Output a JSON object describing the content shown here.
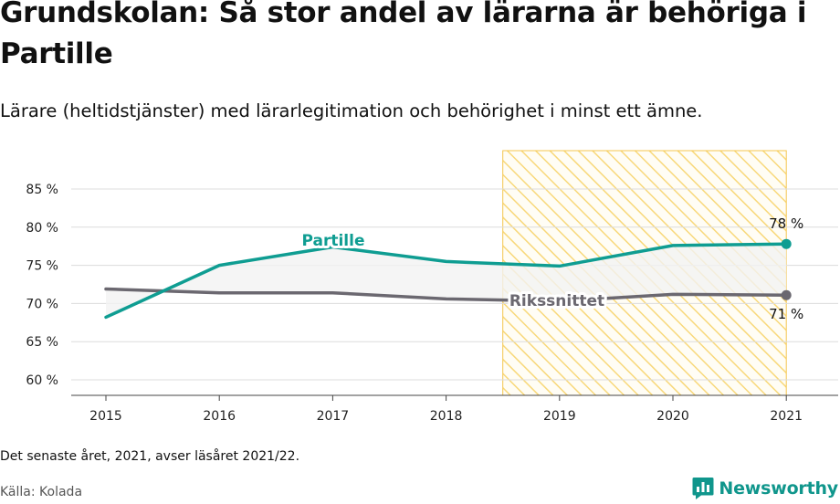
{
  "header": {
    "title": "Grundskolan: Så stor andel av lärarna är behöriga i Partille",
    "subtitle": "Lärare (heltidstjänster) med lärarlegitimation och behörighet i minst ett ämne."
  },
  "footer": {
    "note": "Det senaste året, 2021, avser läsåret 2021/22.",
    "source": "Källa: Kolada",
    "brand": "Newsworthy",
    "brand_icon": "newsworthy-logo-icon"
  },
  "colors": {
    "partille": "#0f9d92",
    "riksnittet": "#6b6870",
    "highlight_stripe": "#f8d87a",
    "highlight_border": "#f4c64e",
    "grid": "#dcdcdc",
    "band": "#f2f2f2"
  },
  "chart_data": {
    "type": "line",
    "title": "Grundskolan: Så stor andel av lärarna är behöriga i Partille",
    "subtitle": "Lärare (heltidstjänster) med lärarlegitimation och behörighet i minst ett ämne.",
    "xlabel": "",
    "ylabel": "",
    "x": [
      "2015",
      "2016",
      "2017",
      "2018",
      "2019",
      "2020",
      "2021"
    ],
    "ylim": [
      58,
      90
    ],
    "yticks": [
      60,
      65,
      70,
      75,
      80,
      85
    ],
    "ytick_labels": [
      "60 %",
      "65 %",
      "70 %",
      "75 %",
      "80 %",
      "85 %"
    ],
    "grid": "horizontal",
    "highlight_range": [
      "2018.5",
      "2021"
    ],
    "series": [
      {
        "name": "Partille",
        "values": [
          68.2,
          75.0,
          77.4,
          75.5,
          74.9,
          77.6,
          77.8
        ],
        "end_label": "78 %"
      },
      {
        "name": "Rikssnittet",
        "values": [
          71.9,
          71.4,
          71.4,
          70.6,
          70.3,
          71.2,
          71.1
        ],
        "end_label": "71 %"
      }
    ]
  }
}
